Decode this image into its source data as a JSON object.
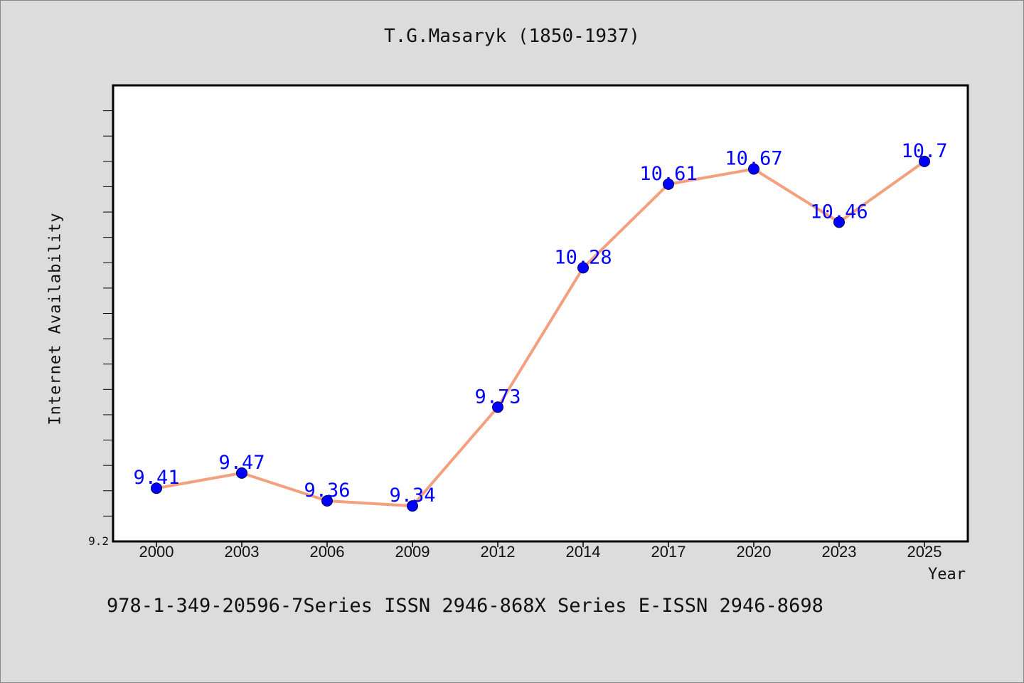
{
  "chart_data": {
    "type": "line",
    "title": "T.G.Masaryk (1850-1937)",
    "xlabel": "Year",
    "ylabel": "Internet Availability",
    "categories": [
      "2000",
      "2003",
      "2006",
      "2009",
      "2012",
      "2014",
      "2017",
      "2020",
      "2023",
      "2025"
    ],
    "series": [
      {
        "values": [
          9.41,
          9.47,
          9.36,
          9.34,
          9.73,
          10.28,
          10.61,
          10.67,
          10.46,
          10.7
        ]
      }
    ],
    "data_labels": [
      "9.41",
      "9.47",
      "9.36",
      "9.34",
      "9.73",
      "10.28",
      "10.61",
      "10.67",
      "10.46",
      "10.7"
    ],
    "ylim": [
      9.2,
      11.0
    ],
    "ytick_labels": [
      "9.2"
    ],
    "grid": false,
    "colors": {
      "line": "#f4a07f",
      "marker": "#0000ff",
      "data_label": "#0000ff",
      "background": "#dcdcdc",
      "plot_background": "#ffffff"
    }
  },
  "footer": "978-1-349-20596-7Series ISSN 2946-868X Series E-ISSN 2946-8698"
}
